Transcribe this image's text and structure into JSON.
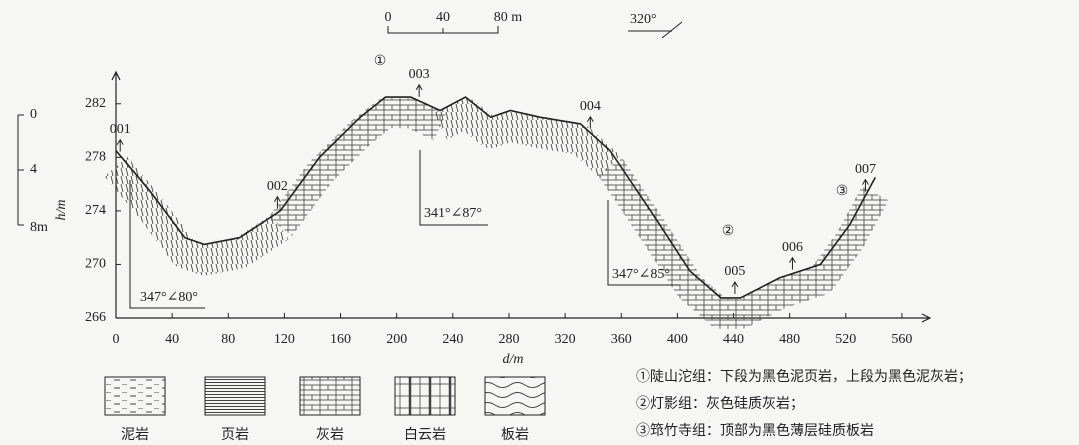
{
  "chart_data": {
    "type": "line",
    "x_label": "d/m",
    "y_label": "h/m",
    "x": [
      0,
      24,
      49,
      63,
      88,
      117,
      145,
      174,
      192,
      210,
      231,
      249,
      267,
      281,
      302,
      331,
      352,
      381,
      409,
      431,
      445,
      473,
      502,
      523,
      541
    ],
    "values": [
      278.5,
      275.5,
      272,
      271.5,
      272,
      274,
      278,
      281,
      282.5,
      282.5,
      281.5,
      282.5,
      281,
      281.5,
      281,
      280.5,
      278.5,
      274,
      269.5,
      267.5,
      267.5,
      269,
      270,
      273,
      276.5
    ],
    "color": "#222",
    "xlim": [
      0,
      580
    ],
    "xticks": [
      0,
      40,
      80,
      120,
      160,
      200,
      240,
      280,
      320,
      360,
      400,
      440,
      480,
      520,
      560
    ],
    "ylim": [
      266,
      284
    ],
    "yticks": [
      266,
      270,
      274,
      278,
      282
    ],
    "stations": [
      {
        "label": "001",
        "x": 3
      },
      {
        "label": "002",
        "x": 115
      },
      {
        "label": "003",
        "x": 216
      },
      {
        "label": "004",
        "x": 338
      },
      {
        "label": "005",
        "x": 441
      },
      {
        "label": "006",
        "x": 482
      },
      {
        "label": "007",
        "x": 534
      }
    ],
    "attitudes": [
      "347°∠80°",
      "341°∠87°",
      "347°∠85°"
    ],
    "formation_marks": [
      "①",
      "②",
      "③"
    ],
    "scale_bar": [
      "0",
      "40",
      "80 m"
    ],
    "orientation": "320°",
    "depth_scale": [
      "0",
      "4",
      "8m"
    ],
    "legend": [
      "泥岩",
      "页岩",
      "灰岩",
      "白云岩",
      "板岩"
    ],
    "notes": [
      "①陡山沱组：下段为黑色泥页岩，上段为黑色泥灰岩；",
      "②灯影组：灰色硅质灰岩；",
      "③筇竹寺组：顶部为黑色薄层硅质板岩"
    ]
  }
}
